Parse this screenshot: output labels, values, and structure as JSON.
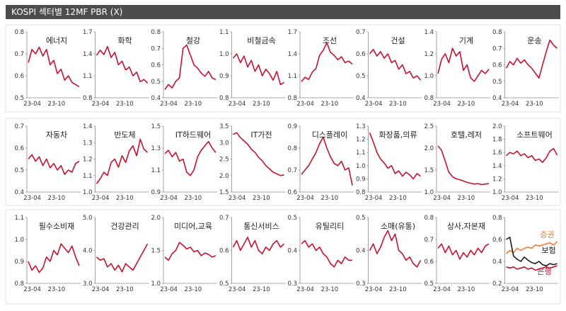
{
  "header": {
    "title": "KOSPI 섹터별 12MF PBR (X)"
  },
  "colors": {
    "line": "#c8102e",
    "axis": "#8c8c8c",
    "box": "#e2e2e2",
    "text": "#333333",
    "broker": "#ed7d31",
    "insurance": "#1a1a1a",
    "bank": "#c8102e"
  },
  "chart_data": [
    {
      "type": "line",
      "title": "에너지",
      "ylim": [
        0.5,
        0.8
      ],
      "yticks": [
        "0.8",
        "0.7",
        "0.6",
        "0.5"
      ],
      "xticks": [
        "23-04",
        "23-10"
      ],
      "values": [
        0.66,
        0.72,
        0.7,
        0.73,
        0.69,
        0.72,
        0.65,
        0.67,
        0.61,
        0.63,
        0.58,
        0.6,
        0.57,
        0.56,
        0.55
      ]
    },
    {
      "type": "line",
      "title": "화학",
      "ylim": [
        0.8,
        1.7
      ],
      "yticks": [
        "1.7",
        "1.4",
        "1.1",
        "0.8"
      ],
      "xticks": [
        "23-04",
        "23-10"
      ],
      "values": [
        1.38,
        1.45,
        1.39,
        1.5,
        1.35,
        1.42,
        1.25,
        1.3,
        1.18,
        1.22,
        1.1,
        1.15,
        1.02,
        1.05,
        1.0
      ]
    },
    {
      "type": "line",
      "title": "철강",
      "ylim": [
        0.4,
        0.8
      ],
      "yticks": [
        "0.8",
        "0.7",
        "0.6",
        "0.5",
        "0.4"
      ],
      "xticks": [
        "23-04",
        "23-10"
      ],
      "values": [
        0.45,
        0.48,
        0.46,
        0.5,
        0.52,
        0.7,
        0.72,
        0.66,
        0.6,
        0.58,
        0.55,
        0.53,
        0.56,
        0.52,
        0.51
      ]
    },
    {
      "type": "line",
      "title": "비철금속",
      "ylim": [
        0.8,
        1.1
      ],
      "yticks": [
        "1.1",
        "1.0",
        "0.9",
        "0.8"
      ],
      "xticks": [
        "23-04",
        "23-10"
      ],
      "values": [
        0.98,
        1.0,
        0.96,
        0.99,
        0.94,
        0.97,
        0.92,
        0.95,
        0.9,
        0.93,
        0.91,
        0.88,
        0.92,
        0.86,
        0.87
      ]
    },
    {
      "type": "line",
      "title": "조선",
      "ylim": [
        0.8,
        1.7
      ],
      "yticks": [
        "1.7",
        "1.4",
        "1.1",
        "0.8"
      ],
      "xticks": [
        "23-04",
        "23-10"
      ],
      "values": [
        1.02,
        1.08,
        1.05,
        1.15,
        1.2,
        1.38,
        1.45,
        1.55,
        1.42,
        1.38,
        1.32,
        1.36,
        1.28,
        1.3,
        1.26
      ]
    },
    {
      "type": "line",
      "title": "건설",
      "ylim": [
        0.4,
        0.7
      ],
      "yticks": [
        "0.7",
        "0.6",
        "0.5",
        "0.4"
      ],
      "xticks": [
        "23-04",
        "23-10"
      ],
      "values": [
        0.6,
        0.62,
        0.59,
        0.61,
        0.58,
        0.6,
        0.56,
        0.57,
        0.53,
        0.55,
        0.51,
        0.52,
        0.49,
        0.5,
        0.48
      ]
    },
    {
      "type": "line",
      "title": "기계",
      "ylim": [
        0.8,
        1.4
      ],
      "yticks": [
        "1.4",
        "1.2",
        "1.0",
        "0.8"
      ],
      "xticks": [
        "23-04",
        "23-10"
      ],
      "values": [
        1.02,
        1.15,
        1.2,
        1.12,
        1.25,
        1.18,
        1.22,
        1.05,
        1.1,
        0.98,
        0.95,
        1.0,
        1.05,
        1.02,
        1.06
      ]
    },
    {
      "type": "line",
      "title": "운송",
      "ylim": [
        0.4,
        0.8
      ],
      "yticks": [
        "0.8",
        "0.7",
        "0.6",
        "0.5",
        "0.4"
      ],
      "xticks": [
        "23-04",
        "23-10"
      ],
      "values": [
        0.58,
        0.62,
        0.6,
        0.64,
        0.61,
        0.63,
        0.6,
        0.58,
        0.55,
        0.52,
        0.6,
        0.68,
        0.75,
        0.72,
        0.7
      ]
    },
    {
      "type": "line",
      "title": "자동차",
      "ylim": [
        0.4,
        0.7
      ],
      "yticks": [
        "0.7",
        "0.6",
        "0.5",
        "0.4"
      ],
      "xticks": [
        "23-04",
        "23-10"
      ],
      "values": [
        0.55,
        0.57,
        0.54,
        0.56,
        0.52,
        0.55,
        0.51,
        0.53,
        0.5,
        0.52,
        0.48,
        0.5,
        0.49,
        0.53,
        0.54
      ]
    },
    {
      "type": "line",
      "title": "반도체",
      "ylim": [
        1.0,
        1.4
      ],
      "yticks": [
        "1.4",
        "1.3",
        "1.2",
        "1.1",
        "1.0"
      ],
      "xticks": [
        "23-04",
        "23-10"
      ],
      "values": [
        1.05,
        1.08,
        1.12,
        1.1,
        1.18,
        1.2,
        1.15,
        1.22,
        1.18,
        1.25,
        1.28,
        1.22,
        1.32,
        1.26,
        1.24
      ]
    },
    {
      "type": "line",
      "title": "IT하드웨어",
      "ylim": [
        0.9,
        1.5
      ],
      "yticks": [
        "1.5",
        "1.3",
        "1.1",
        "0.9"
      ],
      "xticks": [
        "23-04",
        "23-10"
      ],
      "values": [
        1.25,
        1.28,
        1.22,
        1.26,
        1.18,
        1.2,
        1.08,
        1.05,
        1.1,
        1.22,
        1.28,
        1.32,
        1.36,
        1.3,
        1.26
      ]
    },
    {
      "type": "line",
      "title": "IT가전",
      "ylim": [
        1.5,
        3.5
      ],
      "yticks": [
        "3.5",
        "3.0",
        "2.5",
        "2.0",
        "1.5"
      ],
      "xticks": [
        "23-04",
        "23-10"
      ],
      "values": [
        3.25,
        3.3,
        3.15,
        3.05,
        2.95,
        2.8,
        2.7,
        2.55,
        2.45,
        2.3,
        2.2,
        2.1,
        2.05,
        2.0,
        2.02
      ]
    },
    {
      "type": "line",
      "title": "디스플레이",
      "ylim": [
        0.6,
        0.9
      ],
      "yticks": [
        "0.9",
        "0.8",
        "0.7",
        "0.6"
      ],
      "xticks": [
        "23-04",
        "23-10"
      ],
      "values": [
        0.68,
        0.7,
        0.72,
        0.75,
        0.78,
        0.82,
        0.85,
        0.8,
        0.76,
        0.73,
        0.72,
        0.74,
        0.7,
        0.71,
        0.63
      ]
    },
    {
      "type": "line",
      "title": "화장품,의류",
      "ylim": [
        0.8,
        1.3
      ],
      "yticks": [
        "1.3",
        "1.2",
        "1.1",
        "1.0",
        "0.9",
        "0.8"
      ],
      "xticks": [
        "23-04",
        "23-10"
      ],
      "values": [
        1.25,
        1.18,
        1.1,
        1.05,
        1.02,
        0.98,
        1.0,
        0.94,
        0.96,
        0.92,
        0.95,
        0.93,
        0.9,
        0.94,
        0.92
      ]
    },
    {
      "type": "line",
      "title": "호텔,레저",
      "ylim": [
        1.0,
        2.5
      ],
      "yticks": [
        "2.5",
        "2.0",
        "1.5",
        "1.0"
      ],
      "xticks": [
        "23-04",
        "23-10"
      ],
      "values": [
        2.05,
        1.95,
        1.7,
        1.45,
        1.35,
        1.3,
        1.28,
        1.25,
        1.22,
        1.2,
        1.18,
        1.19,
        1.17,
        1.18,
        1.19
      ]
    },
    {
      "type": "line",
      "title": "소프트웨어",
      "ylim": [
        1.0,
        2.0
      ],
      "yticks": [
        "2.0",
        "1.8",
        "1.6",
        "1.4",
        "1.2",
        "1.0"
      ],
      "xticks": [
        "23-04",
        "23-10"
      ],
      "values": [
        1.55,
        1.6,
        1.58,
        1.62,
        1.55,
        1.58,
        1.52,
        1.55,
        1.48,
        1.5,
        1.45,
        1.52,
        1.62,
        1.66,
        1.56
      ]
    },
    {
      "type": "line",
      "title": "필수소비재",
      "ylim": [
        0.8,
        1.1
      ],
      "yticks": [
        "1.1",
        "1.0",
        "0.9",
        "0.8"
      ],
      "xticks": [
        "23-04",
        "23-10"
      ],
      "values": [
        0.9,
        0.86,
        0.88,
        0.85,
        0.87,
        0.92,
        0.9,
        0.95,
        0.93,
        0.98,
        0.96,
        0.94,
        0.97,
        0.92,
        0.88
      ]
    },
    {
      "type": "line",
      "title": "건강관리",
      "ylim": [
        3.0,
        5.0
      ],
      "yticks": [
        "5.0",
        "4.0",
        "3.0"
      ],
      "xticks": [
        "23-04",
        "23-10"
      ],
      "values": [
        3.8,
        3.7,
        3.75,
        3.5,
        3.6,
        3.4,
        3.55,
        3.35,
        3.6,
        3.5,
        3.4,
        3.6,
        3.8,
        4.0,
        4.2
      ]
    },
    {
      "type": "line",
      "title": "미디어,교육",
      "ylim": [
        1.0,
        2.0
      ],
      "yticks": [
        "2.0",
        "1.5",
        "1.0"
      ],
      "xticks": [
        "23-04",
        "23-10"
      ],
      "values": [
        1.4,
        1.35,
        1.45,
        1.5,
        1.62,
        1.58,
        1.52,
        1.55,
        1.48,
        1.5,
        1.42,
        1.46,
        1.44,
        1.4,
        1.42
      ]
    },
    {
      "type": "line",
      "title": "통신서비스",
      "ylim": [
        0.5,
        0.7
      ],
      "yticks": [
        "0.7",
        "0.6",
        "0.5"
      ],
      "xticks": [
        "23-04",
        "23-10"
      ],
      "values": [
        0.61,
        0.63,
        0.6,
        0.62,
        0.64,
        0.61,
        0.63,
        0.6,
        0.59,
        0.61,
        0.6,
        0.62,
        0.63,
        0.61,
        0.62
      ]
    },
    {
      "type": "line",
      "title": "유틸리티",
      "ylim": [
        0.3,
        0.5
      ],
      "yticks": [
        "0.5",
        "0.4",
        "0.3"
      ],
      "xticks": [
        "23-04",
        "23-10"
      ],
      "values": [
        0.42,
        0.43,
        0.41,
        0.42,
        0.4,
        0.41,
        0.39,
        0.38,
        0.36,
        0.35,
        0.37,
        0.36,
        0.38,
        0.37,
        0.37
      ]
    },
    {
      "type": "line",
      "title": "소매(유통)",
      "ylim": [
        0.3,
        0.5
      ],
      "yticks": [
        "0.5",
        "0.4",
        "0.3"
      ],
      "xticks": [
        "23-04",
        "23-10"
      ],
      "values": [
        0.4,
        0.42,
        0.39,
        0.41,
        0.44,
        0.46,
        0.43,
        0.45,
        0.4,
        0.39,
        0.37,
        0.38,
        0.36,
        0.35,
        0.37
      ]
    },
    {
      "type": "line",
      "title": "상사,자본재",
      "ylim": [
        0.5,
        0.8
      ],
      "yticks": [
        "0.8",
        "0.7",
        "0.6",
        "0.5"
      ],
      "xticks": [
        "23-04",
        "23-10"
      ],
      "values": [
        0.66,
        0.68,
        0.64,
        0.67,
        0.63,
        0.65,
        0.61,
        0.64,
        0.62,
        0.65,
        0.63,
        0.66,
        0.64,
        0.67,
        0.68
      ]
    },
    {
      "type": "line",
      "title": "",
      "ylim": [
        0.2,
        0.8
      ],
      "yticks": [
        "0.8",
        "0.6",
        "0.4",
        "0.2"
      ],
      "xticks": [
        "23-04",
        "23-10"
      ],
      "series": [
        {
          "name": "증권",
          "color": "#ed7d31",
          "values": [
            0.47,
            0.5,
            0.48,
            0.52,
            0.5,
            0.52,
            0.53,
            0.52,
            0.55,
            0.54,
            0.55,
            0.56,
            0.57,
            0.55,
            0.58
          ]
        },
        {
          "name": "보험",
          "color": "#1a1a1a",
          "values": [
            0.6,
            0.62,
            0.45,
            0.42,
            0.4,
            0.44,
            0.41,
            0.39,
            0.38,
            0.4,
            0.37,
            0.36,
            0.38,
            0.37,
            0.38
          ]
        },
        {
          "name": "은행",
          "color": "#c8102e",
          "values": [
            0.35,
            0.34,
            0.35,
            0.33,
            0.34,
            0.35,
            0.33,
            0.34,
            0.32,
            0.33,
            0.34,
            0.35,
            0.34,
            0.35,
            0.36
          ]
        }
      ]
    }
  ]
}
